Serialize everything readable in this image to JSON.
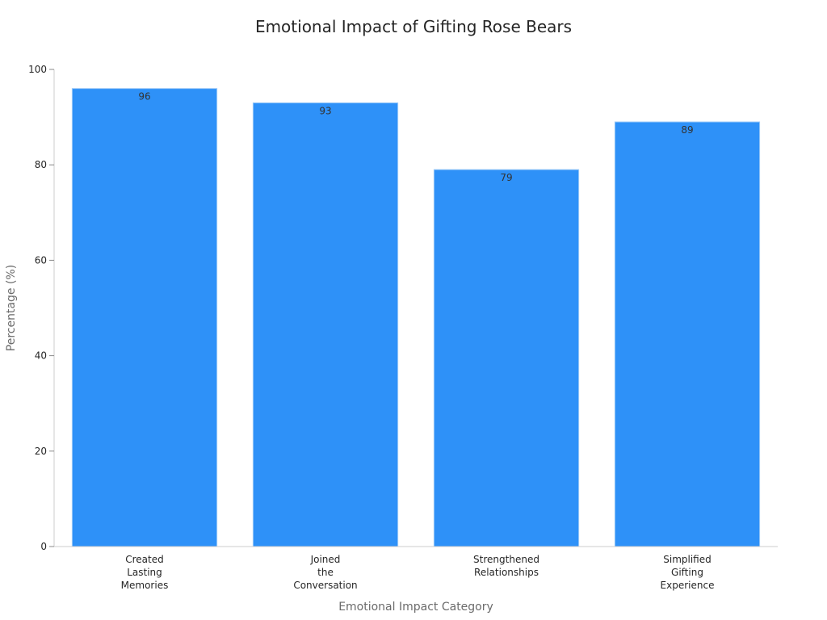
{
  "chart_data": {
    "type": "bar",
    "title": "Emotional Impact of Gifting Rose Bears",
    "xlabel": "Emotional Impact Category",
    "ylabel": "Percentage (%)",
    "categories": [
      [
        "Created",
        "Lasting",
        "Memories"
      ],
      [
        "Joined",
        "the",
        "Conversation"
      ],
      [
        "Strengthened",
        "Relationships"
      ],
      [
        "Simplified",
        "Gifting",
        "Experience"
      ]
    ],
    "values": [
      96,
      93,
      79,
      89
    ],
    "value_labels": [
      "96",
      "93",
      "79",
      "89"
    ],
    "ylim": [
      0,
      100
    ],
    "yticks": [
      0,
      20,
      40,
      60,
      80,
      100
    ],
    "grid": false,
    "bar_color": "#2E91F8",
    "bar_edge_color": "#9cc9f7"
  }
}
